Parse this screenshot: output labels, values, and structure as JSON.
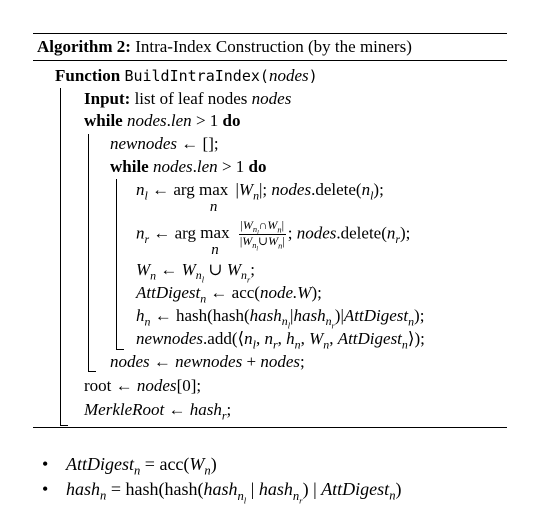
{
  "algorithm": {
    "label": "Algorithm 2:",
    "title": "Intra-Index Construction (by the miners)"
  },
  "function": {
    "keyword": "Function",
    "name": "BuildIntraIndex",
    "param": "nodes"
  },
  "code": {
    "input_kw": "Input:",
    "input_text": "list of leaf nodes",
    "input_var": "nodes",
    "while_kw": "while",
    "do_kw": "do",
    "nodes": "nodes",
    "len": "len",
    "gt_one": " > 1 ",
    "newnodes": "newnodes",
    "assign": " ← ",
    "empty_list": "[];",
    "arg": "arg",
    "max": "max",
    "delete": ".delete(",
    "hash": "hash",
    "acc": "acc(",
    "add": ".add(",
    "root": "root",
    "nodes_index": "[0];",
    "merkle_root": "MerkleRoot",
    "att_digest": "AttDigest",
    "node_w": "node.W"
  },
  "bullets": {
    "att_digest_lhs": "AttDigest",
    "acc_rhs": " = acc(",
    "hash_lhs": "hash",
    "hash_rhs": " = hash(hash("
  }
}
